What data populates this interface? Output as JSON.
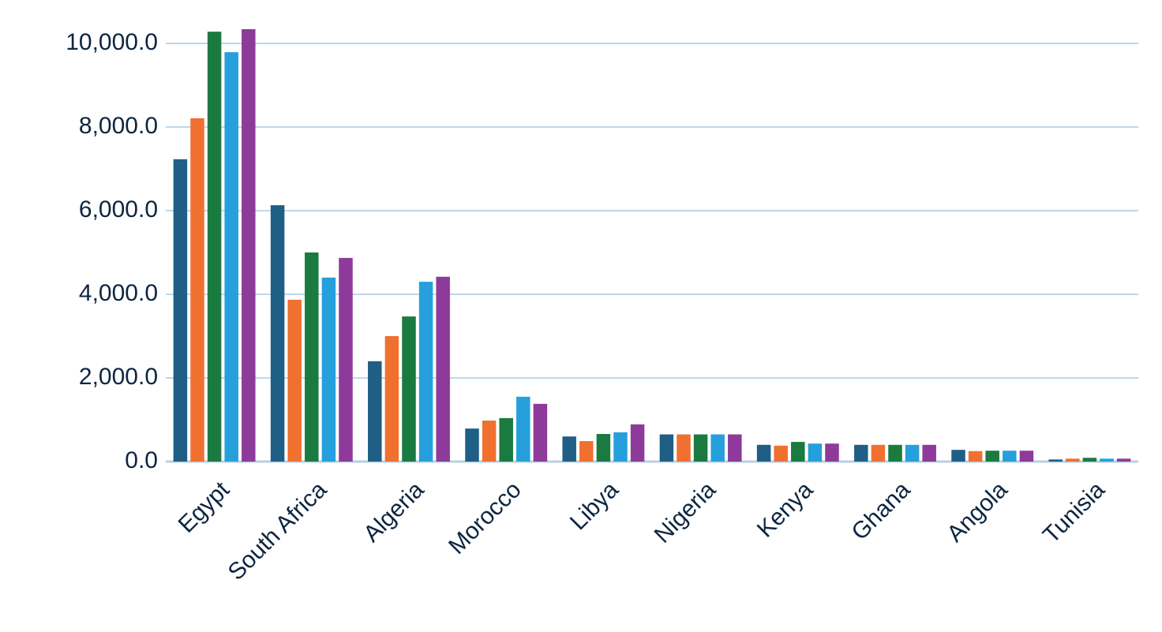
{
  "chart_data": {
    "type": "bar",
    "categories": [
      "Egypt",
      "South Africa",
      "Algeria",
      "Morocco",
      "Libya",
      "Nigeria",
      "Kenya",
      "Ghana",
      "Angola",
      "Tunisia"
    ],
    "series": [
      {
        "color": "#1f5f86",
        "values": [
          7230,
          6130,
          2400,
          790,
          600,
          650,
          400,
          400,
          280,
          50
        ]
      },
      {
        "color": "#f07030",
        "values": [
          8210,
          3870,
          3000,
          980,
          490,
          650,
          380,
          400,
          250,
          70
        ]
      },
      {
        "color": "#1a7a40",
        "values": [
          10280,
          5000,
          3470,
          1040,
          660,
          650,
          470,
          400,
          260,
          90
        ]
      },
      {
        "color": "#25a0dc",
        "values": [
          9790,
          4400,
          4300,
          1550,
          700,
          650,
          430,
          400,
          260,
          70
        ]
      },
      {
        "color": "#8e3a9a",
        "values": [
          10340,
          4870,
          4420,
          1380,
          890,
          650,
          430,
          400,
          260,
          70
        ]
      }
    ],
    "ylim": [
      0,
      10000
    ],
    "yticks": [
      {
        "value": 0,
        "label": "0.0"
      },
      {
        "value": 2000,
        "label": "2,000.0"
      },
      {
        "value": 4000,
        "label": "4,000.0"
      },
      {
        "value": 6000,
        "label": "6,000.0"
      },
      {
        "value": 8000,
        "label": "8,000.0"
      },
      {
        "value": 10000,
        "label": "10,000.0"
      }
    ],
    "grid": true
  }
}
